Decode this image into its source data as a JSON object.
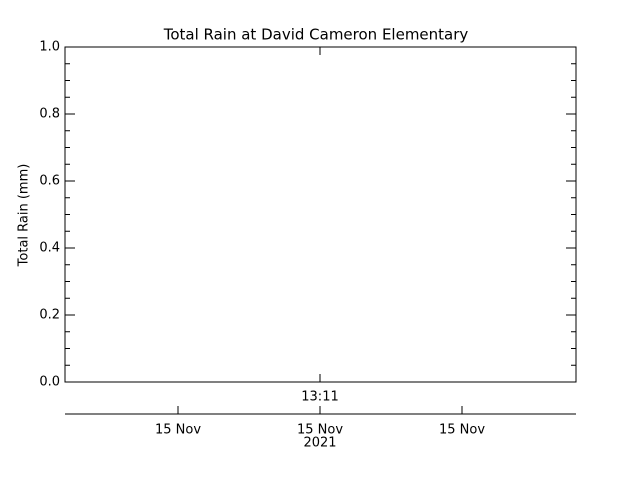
{
  "chart_data": {
    "type": "line",
    "title": "Total Rain at David Cameron Elementary",
    "y_label": "Total Rain (mm)",
    "ylim": [
      0,
      1
    ],
    "yticks": [
      {
        "value": 0,
        "label": "0.0"
      },
      {
        "value": 0.2,
        "label": "0.2"
      },
      {
        "value": 0.4,
        "label": "0.4"
      },
      {
        "value": 0.6,
        "label": "0.6"
      },
      {
        "value": 0.8,
        "label": "0.8"
      },
      {
        "value": 1,
        "label": "1.0"
      }
    ],
    "time_label": "13:11",
    "date_labels": [
      "15 Nov",
      "15 Nov",
      "15 Nov"
    ],
    "year_label": "2021",
    "series": []
  }
}
